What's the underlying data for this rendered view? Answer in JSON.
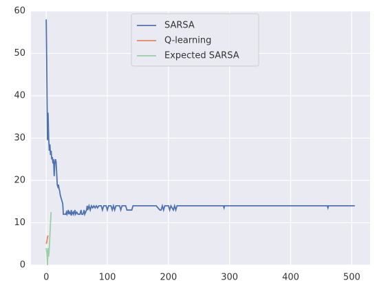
{
  "chart_data": {
    "type": "line",
    "series": [
      {
        "name": "SARSA",
        "color": "#4c72b0",
        "x": [
          0,
          1,
          2,
          3,
          4,
          5,
          6,
          7,
          8,
          9,
          10,
          11,
          12,
          13,
          14,
          15,
          16,
          17,
          18,
          19,
          20,
          21,
          22,
          23,
          24,
          25,
          26,
          27,
          28,
          30,
          32,
          33,
          34,
          36,
          37,
          38,
          40,
          41,
          42,
          44,
          45,
          47,
          48,
          50,
          52,
          55,
          57,
          58,
          60,
          62,
          63,
          66,
          67,
          68,
          70,
          72,
          74,
          76,
          78,
          80,
          82,
          84,
          86,
          90,
          92,
          94,
          98,
          100,
          102,
          106,
          108,
          110,
          112,
          114,
          120,
          122,
          124,
          130,
          132,
          140,
          142,
          180,
          186,
          188,
          190,
          192,
          194,
          200,
          202,
          204,
          208,
          210,
          212,
          214,
          220,
          290,
          291,
          292,
          460,
          461,
          462,
          505
        ],
        "values": [
          58,
          45,
          29.5,
          36,
          30,
          27,
          28.5,
          26,
          27,
          25,
          25.5,
          24,
          25,
          21,
          24,
          25,
          24.5,
          22,
          19,
          18.5,
          19,
          18,
          17.5,
          16.5,
          16,
          15.5,
          15,
          14.5,
          12,
          12,
          12,
          12.5,
          12,
          13,
          12,
          12.5,
          12,
          13,
          12,
          12.5,
          12,
          13,
          12,
          12.5,
          12,
          12,
          13,
          12,
          12,
          13,
          12,
          13,
          14,
          13,
          14,
          13,
          14,
          13.5,
          14,
          13.5,
          14,
          13.5,
          14,
          14,
          13,
          14,
          14,
          13,
          14,
          14,
          13,
          14,
          13,
          14,
          14,
          13,
          14,
          14,
          13,
          13,
          14,
          14,
          13,
          13,
          14,
          13,
          14,
          14,
          13,
          14,
          13,
          14,
          13,
          14,
          14,
          14,
          13.5,
          14,
          14,
          13.5,
          14,
          14
        ]
      },
      {
        "name": "Q-learning",
        "color": "#e8845c",
        "x": [
          0,
          1,
          2,
          3
        ],
        "values": [
          5,
          5.5,
          6.5,
          7
        ]
      },
      {
        "name": "Expected SARSA",
        "color": "#9bcfa5",
        "x": [
          0,
          1,
          2,
          3,
          4,
          5,
          6,
          7,
          8
        ],
        "values": [
          4,
          3,
          0,
          4,
          2,
          4,
          7,
          10,
          12.5
        ]
      }
    ],
    "xlim": [
      -25,
      530
    ],
    "xticks": [
      0,
      100,
      200,
      300,
      400,
      500
    ],
    "ylim": [
      0,
      60
    ],
    "yticks": [
      0,
      10,
      20,
      30,
      40,
      50,
      60
    ],
    "grid": true,
    "legend": "upper center"
  }
}
